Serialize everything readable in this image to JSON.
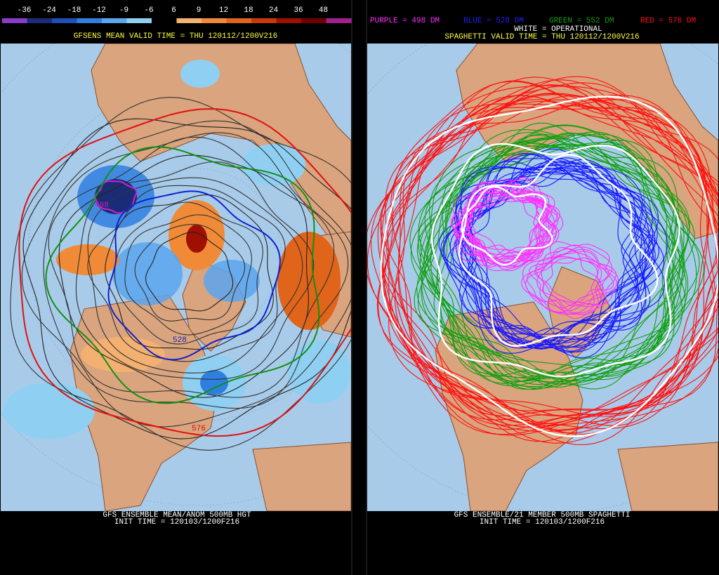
{
  "colorbar": {
    "labels": [
      -36,
      -24,
      -18,
      -12,
      -9,
      -6,
      6,
      9,
      12,
      18,
      24,
      36,
      48
    ],
    "colors": [
      "#8a3cc8",
      "#1a2c78",
      "#1f4fb8",
      "#2f7fe0",
      "#5aa6ee",
      "#8fd0f2",
      "#000000",
      "#f4b070",
      "#f08a36",
      "#e0641a",
      "#c83a08",
      "#a01000",
      "#6e0000",
      "#a0208c"
    ]
  },
  "left_panel": {
    "header": "GFSENS MEAN VALID TIME = THU 120112/1200V216",
    "map_labels": [
      "498",
      "528",
      "576"
    ],
    "footer": [
      "GFS ENSEMBLE MEAN/ANOM 500MB HGT",
      "INIT TIME = 120103/1200F216"
    ]
  },
  "right_panel": {
    "legend": [
      {
        "text": "PURPLE = 498 DM",
        "color": "#ff30ff"
      },
      {
        "text": "BLUE = 528 DM",
        "color": "#2020ff"
      },
      {
        "text": "GREEN = 552 DM",
        "color": "#10a010"
      },
      {
        "text": "RED = 576 DM",
        "color": "#ff1010"
      }
    ],
    "operational": "WHITE = OPERATIONAL",
    "header": "SPAGHETTI VALID TIME = THU 120112/1200V216",
    "footer": [
      "GFS ENSEMBLE/21 MEMBER 500MB SPAGHETTI",
      "INIT TIME = 120103/1200F216"
    ]
  }
}
